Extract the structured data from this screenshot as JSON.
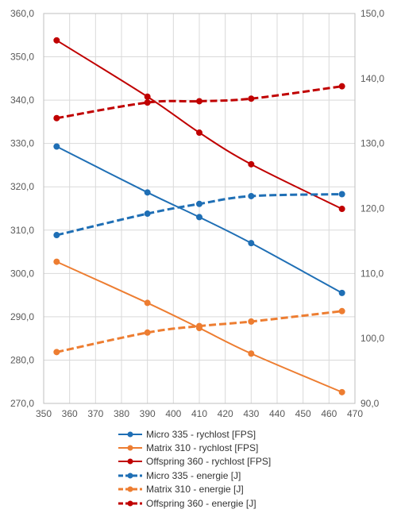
{
  "chart_data": {
    "type": "line",
    "title": "",
    "xlabel": "",
    "ylabel": "",
    "y2label": "",
    "xlim": [
      350,
      470
    ],
    "ylim": [
      270,
      360
    ],
    "y2lim": [
      90,
      150
    ],
    "x_ticks": [
      "350",
      "360",
      "370",
      "380",
      "390",
      "400",
      "410",
      "420",
      "430",
      "440",
      "450",
      "460",
      "470"
    ],
    "y_ticks": [
      "270,0",
      "280,0",
      "290,0",
      "300,0",
      "310,0",
      "320,0",
      "330,0",
      "340,0",
      "350,0",
      "360,0"
    ],
    "y2_ticks": [
      "90,0",
      "100,0",
      "110,0",
      "120,0",
      "130,0",
      "140,0",
      "150,0"
    ],
    "grid": true,
    "legend_position": "bottom",
    "series": [
      {
        "name": "Micro 335 - rychlost [FPS]",
        "axis": "left",
        "style": "solid",
        "color": "#1f6fb5",
        "x": [
          355,
          390,
          410,
          430,
          465
        ],
        "values": [
          329.3,
          318.7,
          313.0,
          307.0,
          295.5
        ]
      },
      {
        "name": "Matrix 310 - rychlost [FPS]",
        "axis": "left",
        "style": "solid",
        "color": "#ed7d31",
        "x": [
          355,
          390,
          410,
          430,
          465
        ],
        "values": [
          302.7,
          293.2,
          287.4,
          281.5,
          272.6
        ]
      },
      {
        "name": "Offspring 360 - rychlost [FPS]",
        "axis": "left",
        "style": "solid",
        "color": "#c00000",
        "x": [
          355,
          390,
          410,
          430,
          465
        ],
        "values": [
          353.8,
          340.8,
          332.5,
          325.2,
          314.9
        ]
      },
      {
        "name": "Micro 335 - energie [J]",
        "axis": "right",
        "style": "dashed",
        "color": "#1f6fb5",
        "x": [
          355,
          390,
          410,
          430,
          465
        ],
        "values": [
          115.9,
          119.2,
          120.7,
          121.9,
          122.2
        ]
      },
      {
        "name": "Matrix 310  - energie [J]",
        "axis": "right",
        "style": "dashed",
        "color": "#ed7d31",
        "x": [
          355,
          390,
          410,
          430,
          465
        ],
        "values": [
          97.9,
          100.9,
          101.9,
          102.6,
          104.2
        ]
      },
      {
        "name": "Offspring 360  - energie [J]",
        "axis": "right",
        "style": "dashed",
        "color": "#c00000",
        "x": [
          355,
          390,
          410,
          430,
          465
        ],
        "values": [
          133.9,
          136.3,
          136.5,
          136.9,
          138.8
        ]
      }
    ]
  },
  "colors": {
    "grid": "#d9d9d9",
    "axis": "#bfbfbf",
    "tick_text": "#595959",
    "legend_text": "#333333"
  }
}
